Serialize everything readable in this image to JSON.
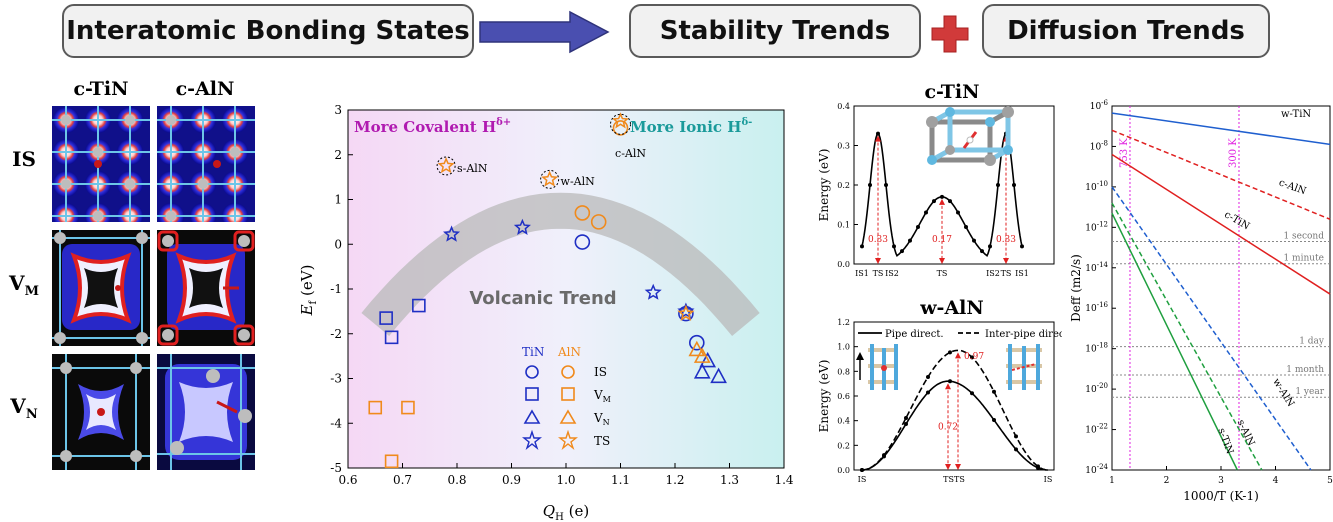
{
  "header": {
    "box1": "Interatomic Bonding States",
    "box2": "Stability Trends",
    "box3": "Diffusion Trends",
    "arrow_color": "#4a4fb0",
    "plus_color": "#d13a3a"
  },
  "grid": {
    "col1": "c-TiN",
    "col2": "c-AlN",
    "rows": [
      {
        "main": "IS",
        "sub": ""
      },
      {
        "main": "V",
        "sub": "M"
      },
      {
        "main": "V",
        "sub": "N"
      }
    ]
  },
  "volcano": {
    "title_left_main": "More Covalent H",
    "title_left_sup": "δ+",
    "title_right_main": "More Ionic H",
    "title_right_sup": "δ-",
    "trend_label": "Volcanic Trend",
    "xlabel_main": "Q",
    "xlabel_sub": "H",
    "xlabel_unit": " (e)",
    "ylabel_main": "E",
    "ylabel_sub": "f",
    "ylabel_unit": " (eV)",
    "xlim": [
      0.6,
      1.4
    ],
    "ylim": [
      -5,
      3
    ],
    "xticks": [
      "0.6",
      "0.7",
      "0.8",
      "0.9",
      "1.0",
      "1.1",
      "1.2",
      "1.3",
      "1.4"
    ],
    "yticks": [
      "3",
      "2",
      "1",
      "0",
      "-1",
      "-2",
      "-3",
      "-4",
      "-5"
    ],
    "legend_tin": "TiN",
    "legend_aln": "AlN",
    "legend_rows": [
      {
        "label": "IS",
        "sub": ""
      },
      {
        "label": "V",
        "sub": "M"
      },
      {
        "label": "V",
        "sub": "N"
      },
      {
        "label": "TS",
        "sub": ""
      }
    ],
    "annotations": [
      "c-AlN",
      "s-AlN",
      "w-AlN"
    ],
    "colors": {
      "TiN": "#1f2fc4",
      "AlN": "#f08a1c"
    }
  },
  "chart_data": [
    {
      "type": "scatter",
      "xlabel": "QH (e)",
      "ylabel": "Ef (eV)",
      "xlim": [
        0.6,
        1.4
      ],
      "ylim": [
        -5,
        3
      ],
      "series": [
        {
          "name": "TiN IS",
          "points": [
            [
              1.03,
              0.05
            ],
            [
              1.22,
              -1.55
            ],
            [
              1.24,
              -2.2
            ]
          ]
        },
        {
          "name": "AlN IS",
          "points": [
            [
              1.03,
              0.7
            ],
            [
              1.06,
              0.5
            ],
            [
              1.1,
              2.6
            ]
          ]
        },
        {
          "name": "TiN VM",
          "points": [
            [
              0.67,
              -1.65
            ],
            [
              0.68,
              -2.08
            ],
            [
              0.73,
              -1.37
            ]
          ]
        },
        {
          "name": "AlN VM",
          "points": [
            [
              0.65,
              -3.65
            ],
            [
              0.71,
              -3.65
            ],
            [
              0.68,
              -4.85
            ]
          ]
        },
        {
          "name": "TiN VN",
          "points": [
            [
              1.25,
              -2.85
            ],
            [
              1.28,
              -2.95
            ],
            [
              1.26,
              -2.6
            ]
          ]
        },
        {
          "name": "AlN VN",
          "points": [
            [
              1.24,
              -2.35
            ],
            [
              1.25,
              -2.5
            ]
          ]
        },
        {
          "name": "TiN TS",
          "points": [
            [
              0.79,
              0.22
            ],
            [
              0.92,
              0.37
            ],
            [
              1.16,
              -1.08
            ],
            [
              1.22,
              -1.5
            ]
          ]
        },
        {
          "name": "AlN TS",
          "points": [
            [
              0.78,
              1.75
            ],
            [
              0.97,
              1.45
            ],
            [
              1.1,
              2.75
            ],
            [
              1.22,
              -1.55
            ]
          ]
        }
      ]
    },
    {
      "type": "line",
      "title": "c-TiN",
      "ylabel": "Energy (eV)",
      "ylim": [
        0,
        0.4
      ],
      "categories": [
        "IS1",
        "TS",
        "IS2",
        "TS",
        "IS2",
        "TS",
        "IS1"
      ],
      "labels": [
        "0.33",
        "0.17",
        "0.33"
      ],
      "values": [
        0,
        0.33,
        0,
        0.17,
        0,
        0.33,
        0
      ]
    },
    {
      "type": "line",
      "title": "w-AlN",
      "ylabel": "Energy (eV)",
      "ylim": [
        0,
        1.2
      ],
      "categories": [
        "IS",
        "TSTS",
        "IS"
      ],
      "series": [
        {
          "name": "Pipe direct.",
          "peak": 0.72
        },
        {
          "name": "Inter-pipe direct.",
          "peak": 0.97
        }
      ]
    },
    {
      "type": "line",
      "xlabel": "1000/T (K-1)",
      "ylabel": "Deff (m2/s)",
      "xlim": [
        1,
        5
      ],
      "ylim_log10": [
        -24,
        -6
      ],
      "series": [
        {
          "name": "w-TiN",
          "style": "solid",
          "color": "#1f5fcf",
          "x": [
            1,
            5
          ],
          "log10": [
            -6.35,
            -7.9
          ]
        },
        {
          "name": "c-AlN",
          "style": "dashed",
          "color": "#e02020",
          "x": [
            1,
            5
          ],
          "log10": [
            -7.2,
            -11.6
          ]
        },
        {
          "name": "c-TiN",
          "style": "solid",
          "color": "#e02020",
          "x": [
            1,
            5
          ],
          "log10": [
            -8.4,
            -15.3
          ]
        },
        {
          "name": "w-AlN",
          "style": "dashed",
          "color": "#1f5fcf",
          "x": [
            1,
            4.65
          ],
          "log10": [
            -10.0,
            -24
          ]
        },
        {
          "name": "s-AlN",
          "style": "dashed",
          "color": "#1f9f3f",
          "x": [
            1,
            3.75
          ],
          "log10": [
            -10.8,
            -24
          ]
        },
        {
          "name": "s-TiN",
          "style": "solid",
          "color": "#1f9f3f",
          "x": [
            1,
            3.3
          ],
          "log10": [
            -11.3,
            -24
          ]
        }
      ],
      "vlines": [
        {
          "x": 1.33,
          "label": "753 K"
        },
        {
          "x": 3.33,
          "label": "300 K"
        }
      ],
      "hlines": [
        {
          "log10": -12.7,
          "label": "1 second"
        },
        {
          "log10": -13.8,
          "label": "1 minute"
        },
        {
          "log10": -17.9,
          "label": "1 day"
        },
        {
          "log10": -19.3,
          "label": "1 month"
        },
        {
          "log10": -20.4,
          "label": "1 year"
        }
      ],
      "xticks": [
        "1",
        "2",
        "3",
        "4",
        "5"
      ],
      "yticks": [
        "10-6",
        "10-8",
        "10-10",
        "10-12",
        "10-14",
        "10-16",
        "10-18",
        "10-20",
        "10-22",
        "10-24"
      ]
    }
  ]
}
